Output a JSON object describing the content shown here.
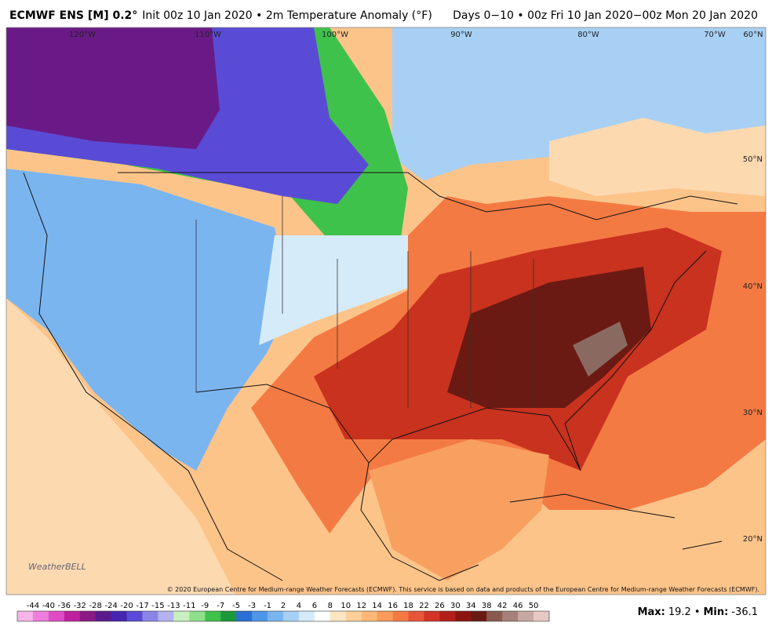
{
  "header": {
    "title_bold": "ECMWF ENS [M] 0.2°",
    "title_rest": "Init 00z 10 Jan 2020 • 2m Temperature Anomaly (°F)",
    "period": "Days 0−10 • 00z Fri 10 Jan 2020−00z Mon 20 Jan 2020"
  },
  "map": {
    "lon_labels": [
      "120°W",
      "110°W",
      "100°W",
      "90°W",
      "80°W",
      "70°W",
      "60°N"
    ],
    "lat_labels": [
      "50°N",
      "40°N",
      "30°N",
      "20°N"
    ],
    "credit": "© 2020 European Centre for Medium-range Weather Forecasts (ECMWF). This service is based on data and products of the European Centre for Medium-range Weather Forecasts (ECMWF).",
    "logo": "WeatherBELL"
  },
  "colorbar": {
    "labels": [
      "-44",
      "-40",
      "-36",
      "-32",
      "-28",
      "-24",
      "-20",
      "-17",
      "-15",
      "-13",
      "-11",
      "-9",
      "-7",
      "-5",
      "-3",
      "-1",
      "2",
      "4",
      "6",
      "8",
      "10",
      "12",
      "14",
      "16",
      "18",
      "22",
      "26",
      "30",
      "34",
      "38",
      "42",
      "46",
      "50"
    ],
    "colors": [
      "#f7b5e8",
      "#ee7fdc",
      "#e04bc8",
      "#c0209f",
      "#8a1a86",
      "#5b1a8c",
      "#4626b0",
      "#5a4bd6",
      "#8a86e8",
      "#b3b3f0",
      "#c8f0c0",
      "#8ee08a",
      "#3fc24b",
      "#1a9a3a",
      "#2a6fd6",
      "#4f95e8",
      "#7ab5f0",
      "#a8d0f5",
      "#d6ebfa",
      "#ffffff",
      "#fde6c4",
      "#fdd09a",
      "#fdb877",
      "#fa9b5a",
      "#f47a44",
      "#e8553a",
      "#d23426",
      "#b41e18",
      "#8c1410",
      "#6a1a12",
      "#8a5a50",
      "#a8807a",
      "#c8a8a2",
      "#e6c8c4"
    ]
  },
  "stats": {
    "max_label": "Max:",
    "max": "19.2",
    "separator": "•",
    "min_label": "Min:",
    "min": "-36.1"
  }
}
